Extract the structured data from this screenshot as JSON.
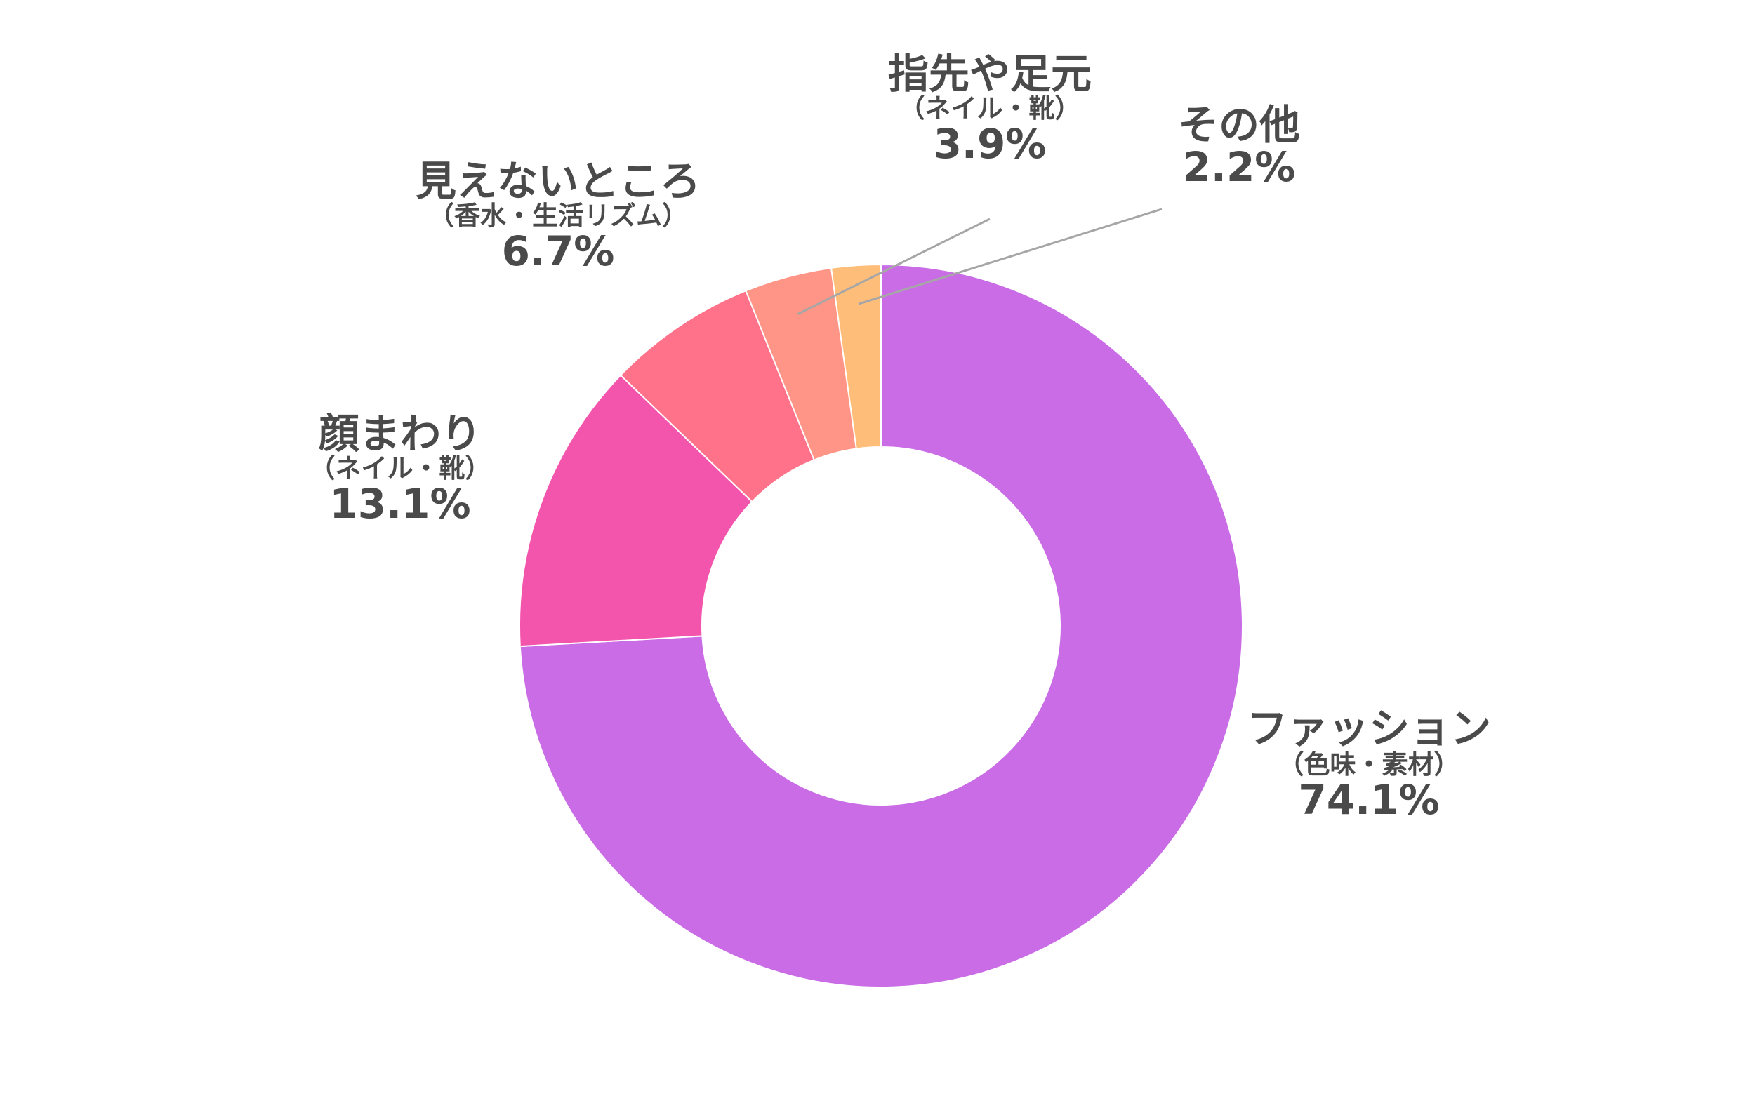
{
  "chart_data": {
    "type": "pie",
    "variant": "donut",
    "title": "",
    "legend": "none",
    "slices": [
      {
        "name": "ファッション",
        "sub": "（色味・素材）",
        "value": 74.1,
        "value_label": "74.1%",
        "color": "#c96ce6"
      },
      {
        "name": "顔まわり",
        "sub": "（ネイル・靴）",
        "value": 13.1,
        "value_label": "13.1%",
        "color": "#f455ac"
      },
      {
        "name": "見えないところ",
        "sub": "（香水・生活リズム）",
        "value": 6.7,
        "value_label": "6.7%",
        "color": "#ff7289"
      },
      {
        "name": "指先や足元",
        "sub": "（ネイル・靴）",
        "value": 3.9,
        "value_label": "3.9%",
        "color": "#ff9586"
      },
      {
        "name": "その他",
        "sub": "",
        "value": 2.2,
        "value_label": "2.2%",
        "color": "#ffbd7a"
      }
    ]
  }
}
